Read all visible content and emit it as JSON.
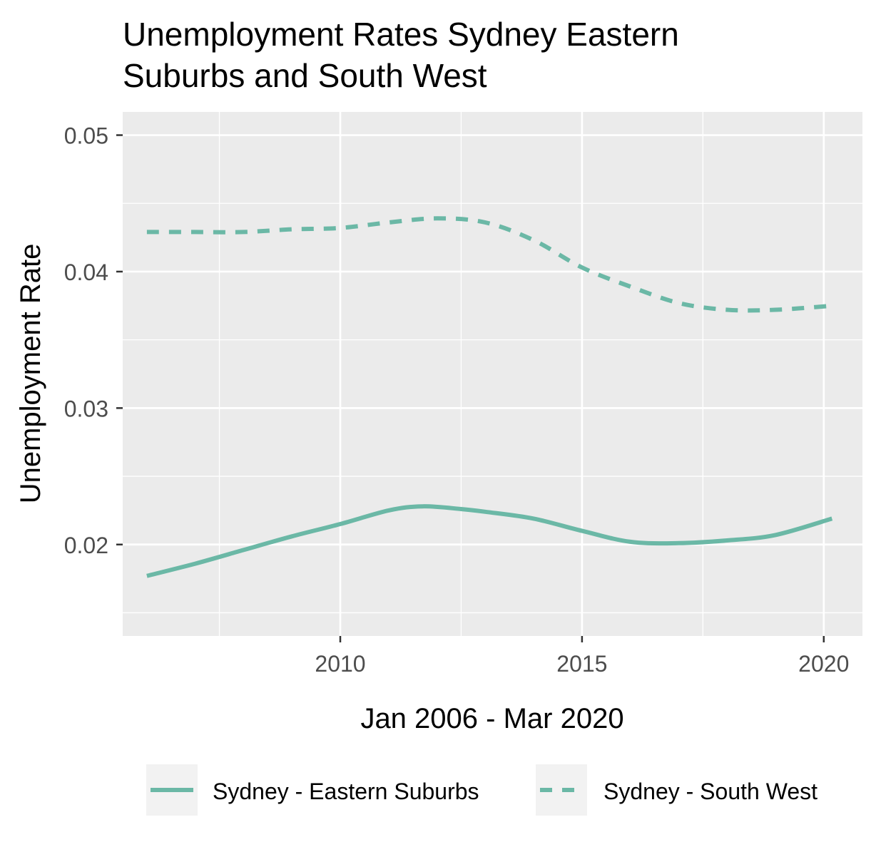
{
  "chart_data": {
    "type": "line",
    "title_lines": [
      "Unemployment Rates Sydney Eastern",
      "Suburbs and South West"
    ],
    "xlabel": "Jan 2006 - Mar 2020",
    "ylabel": "Unemployment Rate",
    "xlim": [
      2005.5,
      2020.8
    ],
    "ylim": [
      0.0133,
      0.0517
    ],
    "x_ticks": [
      2010,
      2015,
      2020
    ],
    "x_tick_labels": [
      "2010",
      "2015",
      "2020"
    ],
    "x_minor_ticks": [
      2007.5,
      2012.5,
      2017.5
    ],
    "y_ticks": [
      0.02,
      0.03,
      0.04,
      0.05
    ],
    "y_tick_labels": [
      "0.02",
      "0.03",
      "0.04",
      "0.05"
    ],
    "y_minor_ticks": [
      0.015,
      0.025,
      0.035,
      0.045
    ],
    "grid": true,
    "legend_position": "bottom",
    "colors": {
      "panel_bg": "#EBEBEB",
      "grid": "#FFFFFF",
      "line": "#6BB8A6",
      "legend_key_bg": "#F2F2F2",
      "tick_label": "#4D4D4D",
      "text": "#000000"
    },
    "series": [
      {
        "name": "Sydney - Eastern Suburbs",
        "linetype": "solid",
        "points": [
          [
            2006.0,
            0.0177
          ],
          [
            2007.0,
            0.0186
          ],
          [
            2008.0,
            0.0196
          ],
          [
            2009.0,
            0.0206
          ],
          [
            2010.0,
            0.0215
          ],
          [
            2011.0,
            0.0225
          ],
          [
            2011.7,
            0.0228
          ],
          [
            2012.5,
            0.0226
          ],
          [
            2013.0,
            0.0224
          ],
          [
            2014.0,
            0.0219
          ],
          [
            2015.0,
            0.021
          ],
          [
            2016.0,
            0.0202
          ],
          [
            2017.0,
            0.0201
          ],
          [
            2018.0,
            0.0203
          ],
          [
            2019.0,
            0.0207
          ],
          [
            2020.17,
            0.0219
          ]
        ]
      },
      {
        "name": "Sydney - South West",
        "linetype": "dashed",
        "points": [
          [
            2006.0,
            0.0429
          ],
          [
            2007.0,
            0.0429
          ],
          [
            2008.0,
            0.0429
          ],
          [
            2009.0,
            0.0431
          ],
          [
            2010.0,
            0.0432
          ],
          [
            2011.0,
            0.0436
          ],
          [
            2012.0,
            0.0439
          ],
          [
            2013.0,
            0.0436
          ],
          [
            2014.0,
            0.0423
          ],
          [
            2015.0,
            0.0403
          ],
          [
            2016.0,
            0.0389
          ],
          [
            2017.0,
            0.0377
          ],
          [
            2018.0,
            0.0372
          ],
          [
            2019.0,
            0.0372
          ],
          [
            2020.17,
            0.0375
          ]
        ]
      }
    ]
  }
}
